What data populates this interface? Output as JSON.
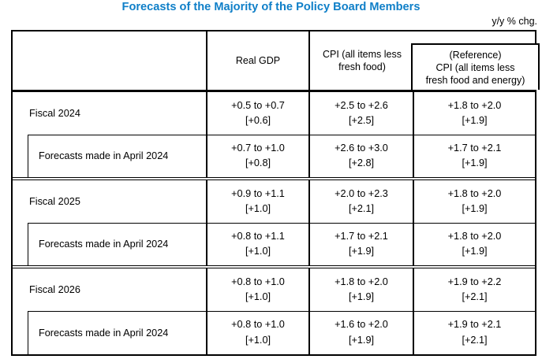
{
  "title": "Forecasts of the Majority of the Policy Board Members",
  "unit_note": "y/y % chg.",
  "colors": {
    "title_blue": "#0f7fc8",
    "border_black": "#000000",
    "background": "#ffffff"
  },
  "table": {
    "header": {
      "label_col": "",
      "real_gdp": "Real GDP",
      "cpi": "CPI (all items less\nfresh food)",
      "reference": "(Reference)\nCPI (all items less\nfresh food and energy)"
    },
    "sections": [
      {
        "rows": [
          {
            "label": "Fiscal 2024",
            "values": [
              {
                "range": "+0.5 to +0.7",
                "central": "[+0.6]"
              },
              {
                "range": "+2.5 to +2.6",
                "central": "[+2.5]"
              },
              {
                "range": "+1.8 to +2.0",
                "central": "[+1.9]"
              }
            ]
          },
          {
            "label": "Forecasts made in April 2024",
            "values": [
              {
                "range": "+0.7 to +1.0",
                "central": "[+0.8]"
              },
              {
                "range": "+2.6 to +3.0",
                "central": "[+2.8]"
              },
              {
                "range": "+1.7 to +2.1",
                "central": "[+1.9]"
              }
            ]
          }
        ]
      },
      {
        "rows": [
          {
            "label": "Fiscal 2025",
            "values": [
              {
                "range": "+0.9 to +1.1",
                "central": "[+1.0]"
              },
              {
                "range": "+2.0 to +2.3",
                "central": "[+2.1]"
              },
              {
                "range": "+1.8 to +2.0",
                "central": "[+1.9]"
              }
            ]
          },
          {
            "label": "Forecasts made in April 2024",
            "values": [
              {
                "range": "+0.8 to +1.1",
                "central": "[+1.0]"
              },
              {
                "range": "+1.7 to +2.1",
                "central": "[+1.9]"
              },
              {
                "range": "+1.8 to +2.0",
                "central": "[+1.9]"
              }
            ]
          }
        ]
      },
      {
        "rows": [
          {
            "label": "Fiscal 2026",
            "values": [
              {
                "range": "+0.8 to +1.0",
                "central": "[+1.0]"
              },
              {
                "range": "+1.8 to +2.0",
                "central": "[+1.9]"
              },
              {
                "range": "+1.9 to +2.2",
                "central": "[+2.1]"
              }
            ]
          },
          {
            "label": "Forecasts made in April 2024",
            "values": [
              {
                "range": "+0.8 to +1.0",
                "central": "[+1.0]"
              },
              {
                "range": "+1.6 to +2.0",
                "central": "[+1.9]"
              },
              {
                "range": "+1.9 to +2.1",
                "central": "[+2.1]"
              }
            ]
          }
        ]
      }
    ]
  }
}
